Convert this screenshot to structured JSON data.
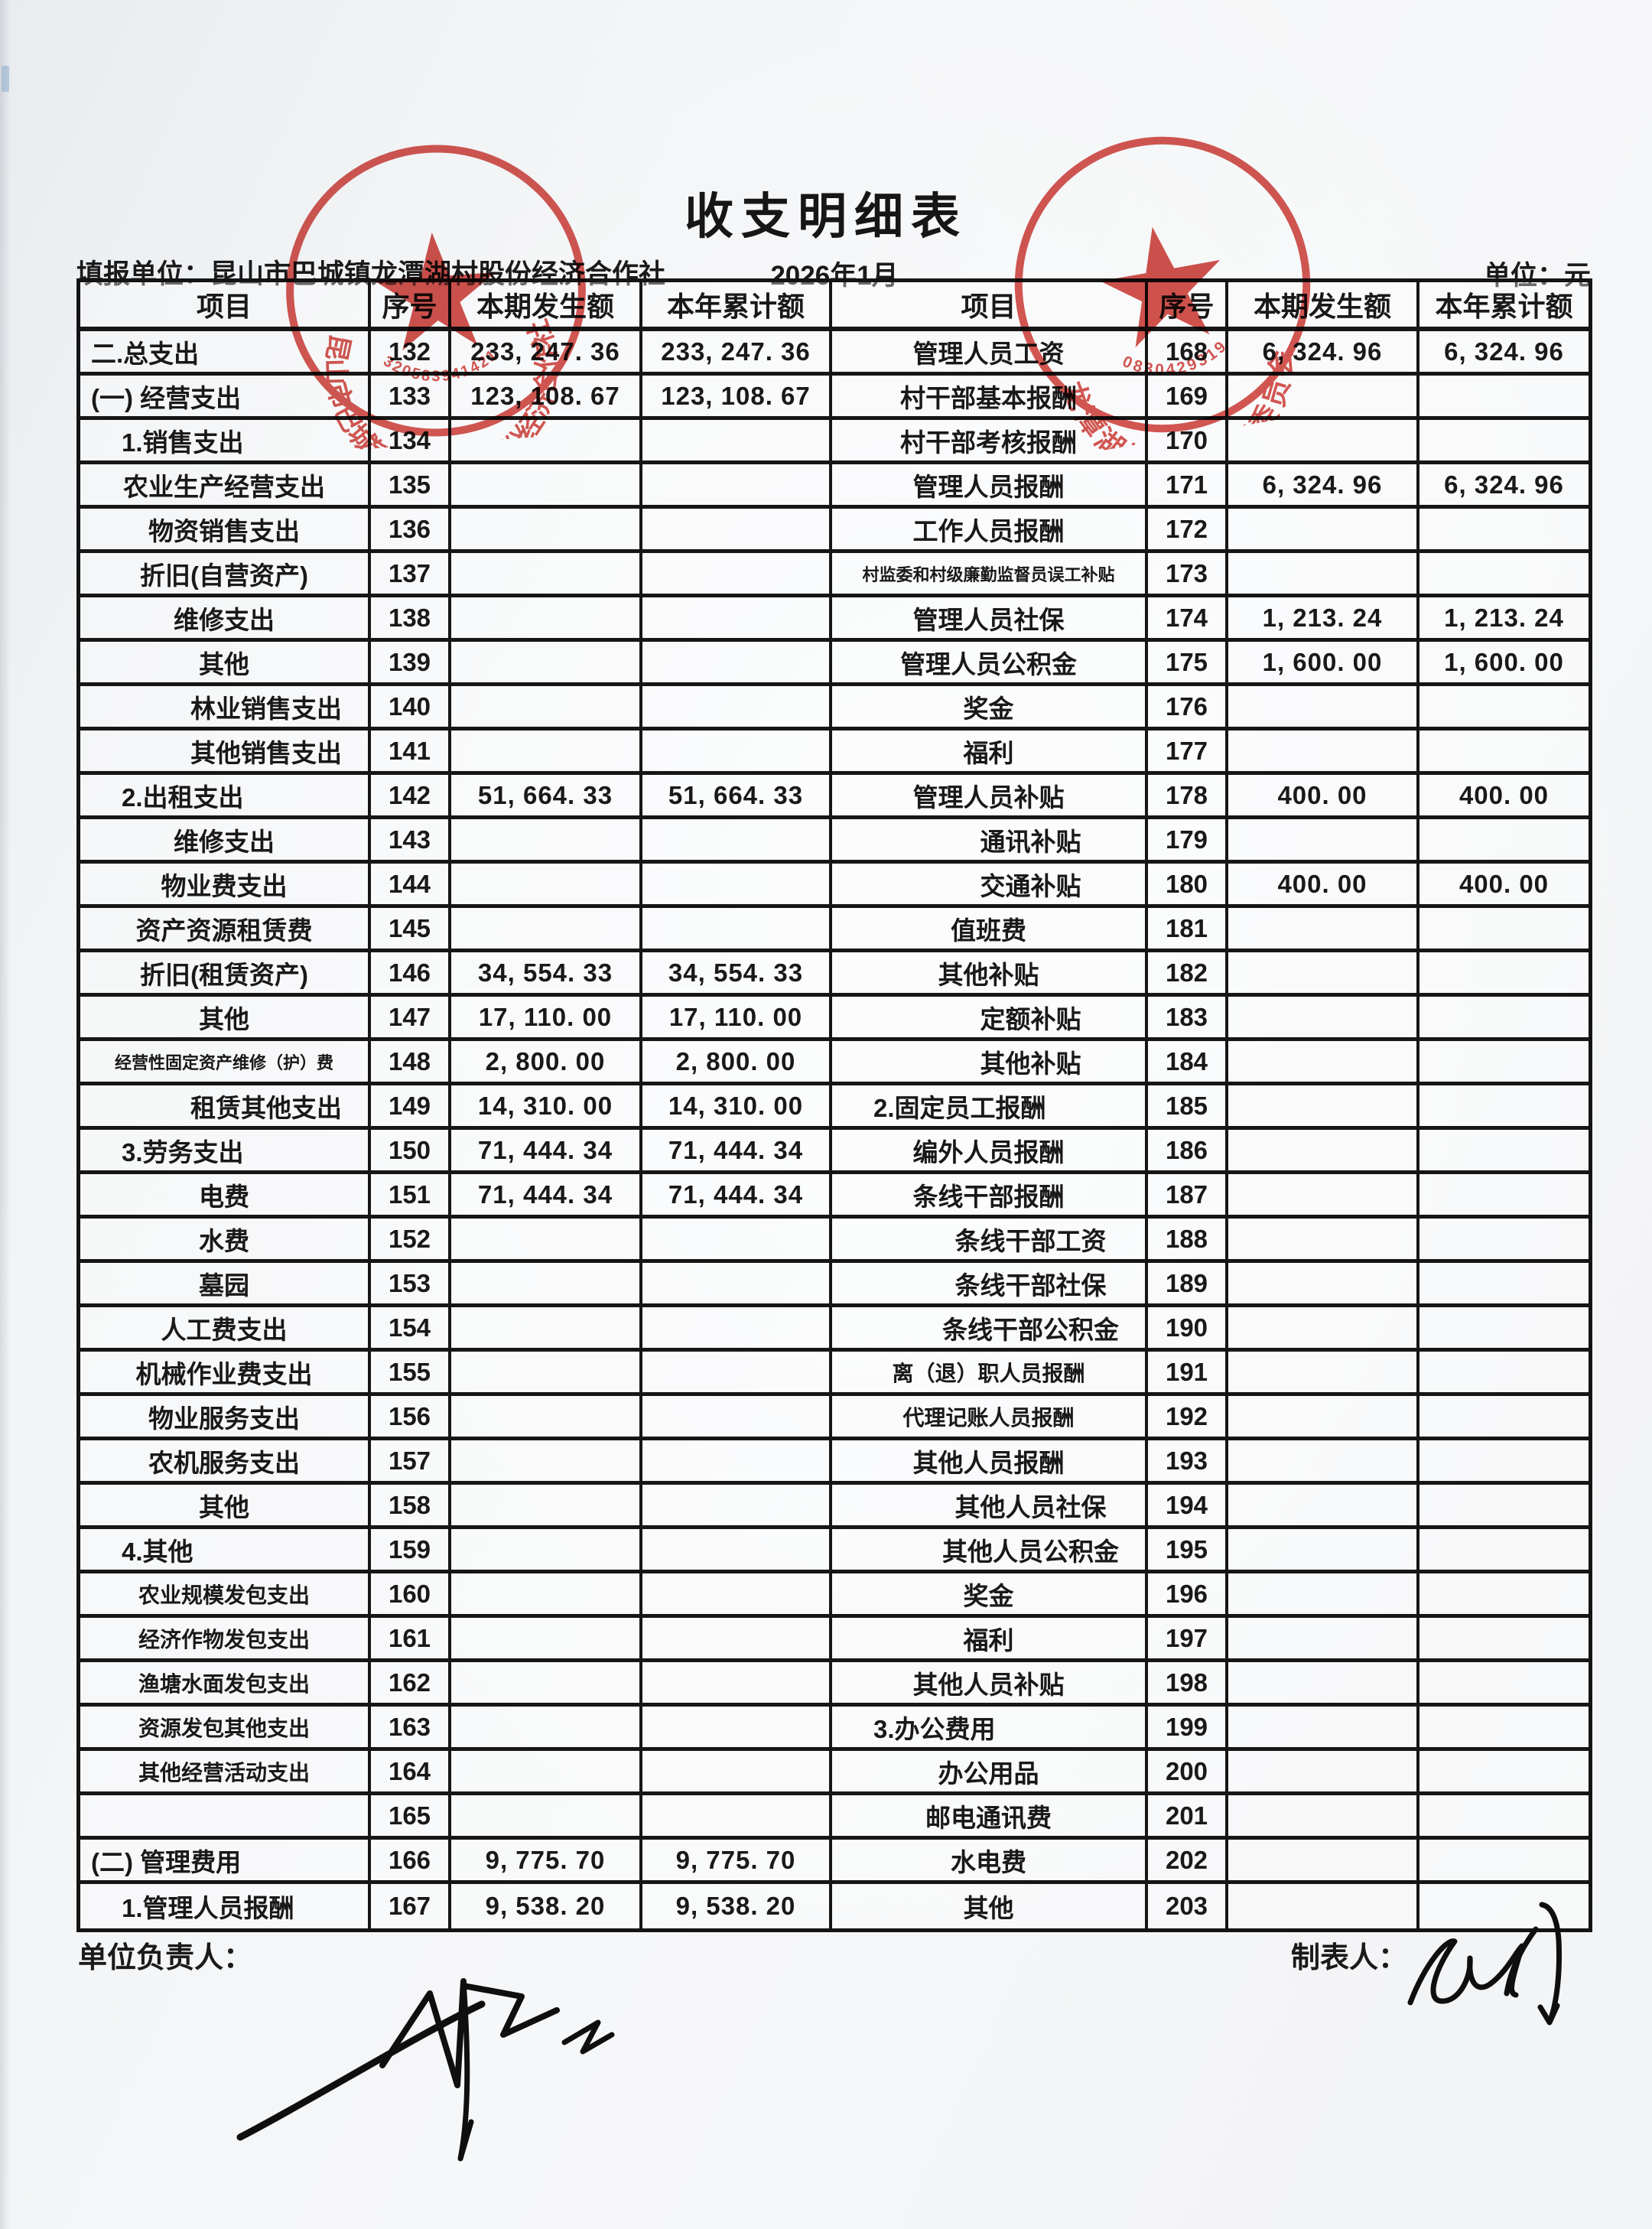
{
  "page": {
    "title": "收支明细表",
    "report_unit": "填报单位：昆山市巴城镇龙潭湖村股份经济合作社",
    "period": "2026年1月",
    "unit_label": "单位：元",
    "footer_left_label": "单位负责人：",
    "footer_right_label": "制表人："
  },
  "table": {
    "headers": [
      "项目",
      "序号",
      "本期发生额",
      "本年累计额",
      "项目",
      "序号",
      "本期发生额",
      "本年累计额"
    ],
    "rows_left": [
      {
        "item": "二.总支出",
        "no": "132",
        "cur": "233, 247. 36",
        "ytd": "233, 247. 36",
        "ind": 0,
        "cls": ""
      },
      {
        "item": "(一) 经营支出",
        "no": "133",
        "cur": "123, 108. 67",
        "ytd": "123, 108. 67",
        "ind": 0,
        "cls": ""
      },
      {
        "item": "1.销售支出",
        "no": "134",
        "cur": "",
        "ytd": "",
        "ind": 1,
        "cls": ""
      },
      {
        "item": "农业生产经营支出",
        "no": "135",
        "cur": "",
        "ytd": "",
        "ind": 2,
        "cls": ""
      },
      {
        "item": "物资销售支出",
        "no": "136",
        "cur": "",
        "ytd": "",
        "ind": 2,
        "cls": ""
      },
      {
        "item": "折旧(自营资产)",
        "no": "137",
        "cur": "",
        "ytd": "",
        "ind": 2,
        "cls": ""
      },
      {
        "item": "维修支出",
        "no": "138",
        "cur": "",
        "ytd": "",
        "ind": 2,
        "cls": ""
      },
      {
        "item": "其他",
        "no": "139",
        "cur": "",
        "ytd": "",
        "ind": 2,
        "cls": ""
      },
      {
        "item": "林业销售支出",
        "no": "140",
        "cur": "",
        "ytd": "",
        "ind": 3,
        "cls": ""
      },
      {
        "item": "其他销售支出",
        "no": "141",
        "cur": "",
        "ytd": "",
        "ind": 3,
        "cls": ""
      },
      {
        "item": "2.出租支出",
        "no": "142",
        "cur": "51, 664. 33",
        "ytd": "51, 664. 33",
        "ind": 1,
        "cls": ""
      },
      {
        "item": "维修支出",
        "no": "143",
        "cur": "",
        "ytd": "",
        "ind": 2,
        "cls": ""
      },
      {
        "item": "物业费支出",
        "no": "144",
        "cur": "",
        "ytd": "",
        "ind": 2,
        "cls": ""
      },
      {
        "item": "资产资源租赁费",
        "no": "145",
        "cur": "",
        "ytd": "",
        "ind": 2,
        "cls": ""
      },
      {
        "item": "折旧(租赁资产)",
        "no": "146",
        "cur": "34, 554. 33",
        "ytd": "34, 554. 33",
        "ind": 2,
        "cls": ""
      },
      {
        "item": "其他",
        "no": "147",
        "cur": "17, 110. 00",
        "ytd": "17, 110. 00",
        "ind": 2,
        "cls": ""
      },
      {
        "item": "经营性固定资产维修（护）费",
        "no": "148",
        "cur": "2, 800. 00",
        "ytd": "2, 800. 00",
        "ind": 2,
        "cls": "xs"
      },
      {
        "item": "租赁其他支出",
        "no": "149",
        "cur": "14, 310. 00",
        "ytd": "14, 310. 00",
        "ind": 3,
        "cls": ""
      },
      {
        "item": "3.劳务支出",
        "no": "150",
        "cur": "71, 444. 34",
        "ytd": "71, 444. 34",
        "ind": 1,
        "cls": ""
      },
      {
        "item": "电费",
        "no": "151",
        "cur": "71, 444. 34",
        "ytd": "71, 444. 34",
        "ind": 2,
        "cls": ""
      },
      {
        "item": "水费",
        "no": "152",
        "cur": "",
        "ytd": "",
        "ind": 2,
        "cls": ""
      },
      {
        "item": "墓园",
        "no": "153",
        "cur": "",
        "ytd": "",
        "ind": 2,
        "cls": ""
      },
      {
        "item": "人工费支出",
        "no": "154",
        "cur": "",
        "ytd": "",
        "ind": 2,
        "cls": ""
      },
      {
        "item": "机械作业费支出",
        "no": "155",
        "cur": "",
        "ytd": "",
        "ind": 2,
        "cls": ""
      },
      {
        "item": "物业服务支出",
        "no": "156",
        "cur": "",
        "ytd": "",
        "ind": 2,
        "cls": ""
      },
      {
        "item": "农机服务支出",
        "no": "157",
        "cur": "",
        "ytd": "",
        "ind": 2,
        "cls": ""
      },
      {
        "item": "其他",
        "no": "158",
        "cur": "",
        "ytd": "",
        "ind": 2,
        "cls": ""
      },
      {
        "item": "4.其他",
        "no": "159",
        "cur": "",
        "ytd": "",
        "ind": 1,
        "cls": ""
      },
      {
        "item": "农业规模发包支出",
        "no": "160",
        "cur": "",
        "ytd": "",
        "ind": 2,
        "cls": "sm"
      },
      {
        "item": "经济作物发包支出",
        "no": "161",
        "cur": "",
        "ytd": "",
        "ind": 2,
        "cls": "sm"
      },
      {
        "item": "渔塘水面发包支出",
        "no": "162",
        "cur": "",
        "ytd": "",
        "ind": 2,
        "cls": "sm"
      },
      {
        "item": "资源发包其他支出",
        "no": "163",
        "cur": "",
        "ytd": "",
        "ind": 2,
        "cls": "sm"
      },
      {
        "item": "其他经营活动支出",
        "no": "164",
        "cur": "",
        "ytd": "",
        "ind": 2,
        "cls": "sm"
      },
      {
        "item": "",
        "no": "165",
        "cur": "",
        "ytd": "",
        "ind": 2,
        "cls": ""
      },
      {
        "item": "(二) 管理费用",
        "no": "166",
        "cur": "9, 775. 70",
        "ytd": "9, 775. 70",
        "ind": 0,
        "cls": ""
      },
      {
        "item": "1.管理人员报酬",
        "no": "167",
        "cur": "9, 538. 20",
        "ytd": "9, 538. 20",
        "ind": 1,
        "cls": ""
      }
    ],
    "rows_right": [
      {
        "item": "管理人员工资",
        "no": "168",
        "cur": "6, 324. 96",
        "ytd": "6, 324. 96",
        "ind": 2,
        "cls": ""
      },
      {
        "item": "村干部基本报酬",
        "no": "169",
        "cur": "",
        "ytd": "",
        "ind": 2,
        "cls": ""
      },
      {
        "item": "村干部考核报酬",
        "no": "170",
        "cur": "",
        "ytd": "",
        "ind": 2,
        "cls": ""
      },
      {
        "item": "管理人员报酬",
        "no": "171",
        "cur": "6, 324. 96",
        "ytd": "6, 324. 96",
        "ind": 2,
        "cls": ""
      },
      {
        "item": "工作人员报酬",
        "no": "172",
        "cur": "",
        "ytd": "",
        "ind": 2,
        "cls": ""
      },
      {
        "item": "村监委和村级廉勤监督员误工补贴",
        "no": "173",
        "cur": "",
        "ytd": "",
        "ind": 2,
        "cls": "xs"
      },
      {
        "item": "管理人员社保",
        "no": "174",
        "cur": "1, 213. 24",
        "ytd": "1, 213. 24",
        "ind": 2,
        "cls": ""
      },
      {
        "item": "管理人员公积金",
        "no": "175",
        "cur": "1, 600. 00",
        "ytd": "1, 600. 00",
        "ind": 2,
        "cls": ""
      },
      {
        "item": "奖金",
        "no": "176",
        "cur": "",
        "ytd": "",
        "ind": 2,
        "cls": ""
      },
      {
        "item": "福利",
        "no": "177",
        "cur": "",
        "ytd": "",
        "ind": 2,
        "cls": ""
      },
      {
        "item": "管理人员补贴",
        "no": "178",
        "cur": "400. 00",
        "ytd": "400. 00",
        "ind": 2,
        "cls": ""
      },
      {
        "item": "通讯补贴",
        "no": "179",
        "cur": "",
        "ytd": "",
        "ind": 3,
        "cls": ""
      },
      {
        "item": "交通补贴",
        "no": "180",
        "cur": "400. 00",
        "ytd": "400. 00",
        "ind": 3,
        "cls": ""
      },
      {
        "item": "值班费",
        "no": "181",
        "cur": "",
        "ytd": "",
        "ind": 2,
        "cls": ""
      },
      {
        "item": "其他补贴",
        "no": "182",
        "cur": "",
        "ytd": "",
        "ind": 2,
        "cls": ""
      },
      {
        "item": "定额补贴",
        "no": "183",
        "cur": "",
        "ytd": "",
        "ind": 3,
        "cls": ""
      },
      {
        "item": "其他补贴",
        "no": "184",
        "cur": "",
        "ytd": "",
        "ind": 3,
        "cls": ""
      },
      {
        "item": "2.固定员工报酬",
        "no": "185",
        "cur": "",
        "ytd": "",
        "ind": 1,
        "cls": ""
      },
      {
        "item": "编外人员报酬",
        "no": "186",
        "cur": "",
        "ytd": "",
        "ind": 2,
        "cls": ""
      },
      {
        "item": "条线干部报酬",
        "no": "187",
        "cur": "",
        "ytd": "",
        "ind": 2,
        "cls": ""
      },
      {
        "item": "条线干部工资",
        "no": "188",
        "cur": "",
        "ytd": "",
        "ind": 3,
        "cls": ""
      },
      {
        "item": "条线干部社保",
        "no": "189",
        "cur": "",
        "ytd": "",
        "ind": 3,
        "cls": ""
      },
      {
        "item": "条线干部公积金",
        "no": "190",
        "cur": "",
        "ytd": "",
        "ind": 3,
        "cls": ""
      },
      {
        "item": "离（退）职人员报酬",
        "no": "191",
        "cur": "",
        "ytd": "",
        "ind": 2,
        "cls": "sm"
      },
      {
        "item": "代理记账人员报酬",
        "no": "192",
        "cur": "",
        "ytd": "",
        "ind": 2,
        "cls": "sm"
      },
      {
        "item": "其他人员报酬",
        "no": "193",
        "cur": "",
        "ytd": "",
        "ind": 2,
        "cls": ""
      },
      {
        "item": "其他人员社保",
        "no": "194",
        "cur": "",
        "ytd": "",
        "ind": 3,
        "cls": ""
      },
      {
        "item": "其他人员公积金",
        "no": "195",
        "cur": "",
        "ytd": "",
        "ind": 3,
        "cls": ""
      },
      {
        "item": "奖金",
        "no": "196",
        "cur": "",
        "ytd": "",
        "ind": 2,
        "cls": ""
      },
      {
        "item": "福利",
        "no": "197",
        "cur": "",
        "ytd": "",
        "ind": 2,
        "cls": ""
      },
      {
        "item": "其他人员补贴",
        "no": "198",
        "cur": "",
        "ytd": "",
        "ind": 2,
        "cls": ""
      },
      {
        "item": "3.办公费用",
        "no": "199",
        "cur": "",
        "ytd": "",
        "ind": 1,
        "cls": ""
      },
      {
        "item": "办公用品",
        "no": "200",
        "cur": "",
        "ytd": "",
        "ind": 2,
        "cls": ""
      },
      {
        "item": "邮电通讯费",
        "no": "201",
        "cur": "",
        "ytd": "",
        "ind": 2,
        "cls": ""
      },
      {
        "item": "水电费",
        "no": "202",
        "cur": "",
        "ytd": "",
        "ind": 2,
        "cls": ""
      },
      {
        "item": "其他",
        "no": "203",
        "cur": "",
        "ytd": "",
        "ind": 2,
        "cls": ""
      }
    ]
  },
  "stamps": {
    "color": "#d0403a",
    "coop": {
      "ring_text": "昆山市巴城镇龙潭湖村股份经济合作社",
      "code": "320583941421"
    },
    "supervise": {
      "ring_text": "龙潭湖村村务监督委员会",
      "code": "0830429319"
    }
  }
}
